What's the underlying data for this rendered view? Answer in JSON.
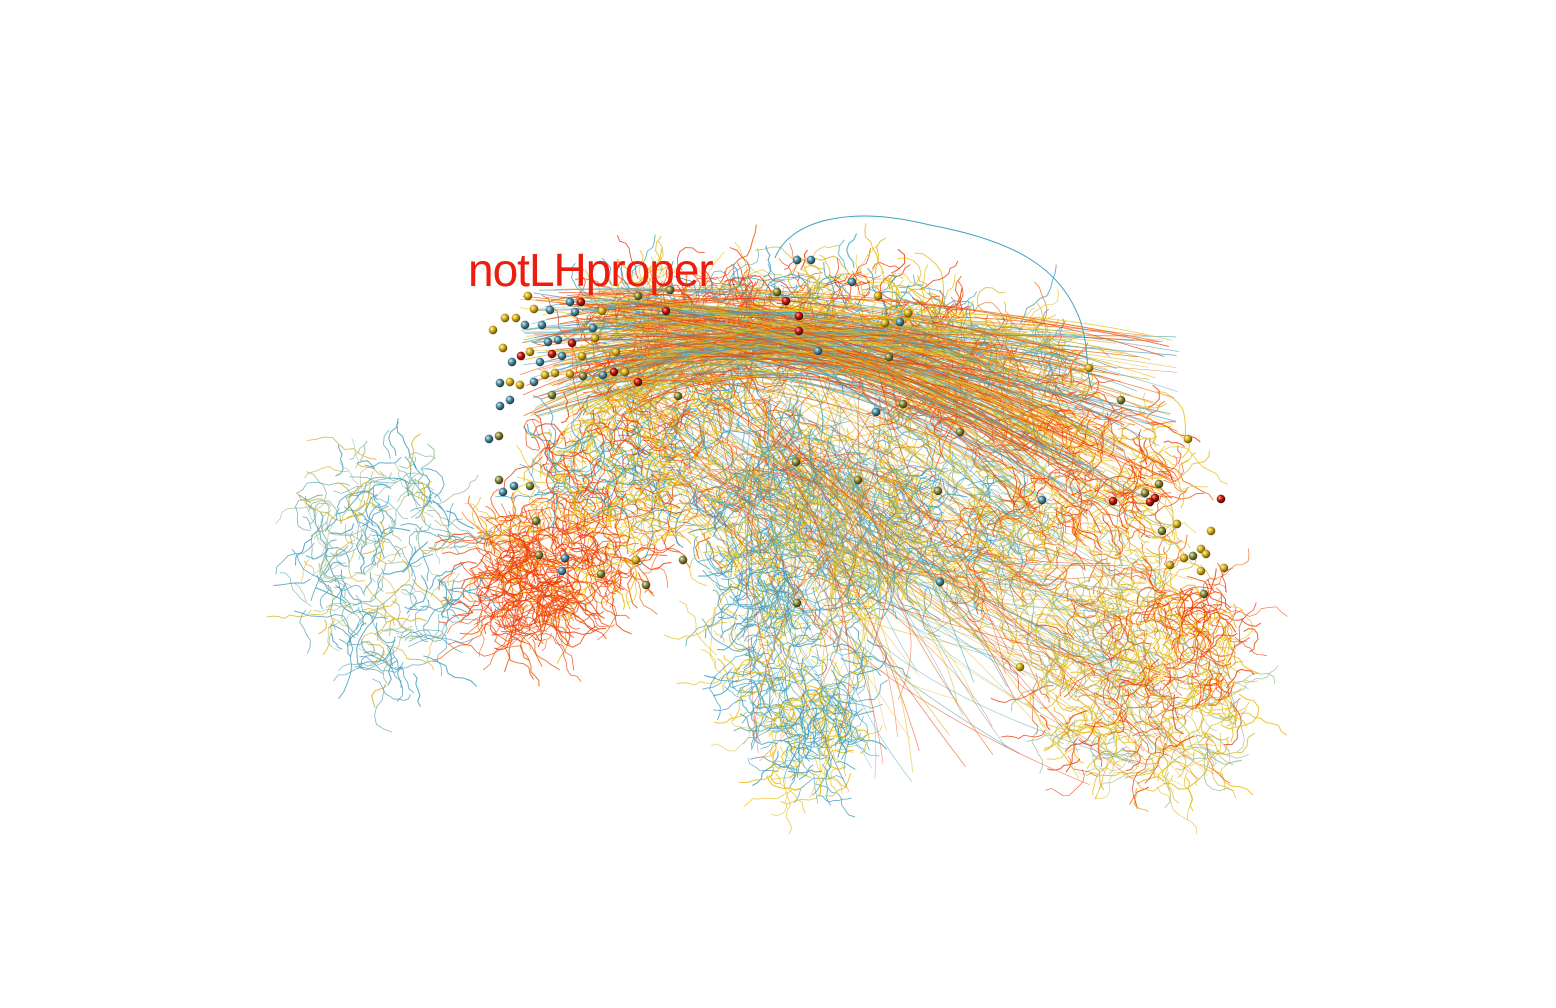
{
  "scene": {
    "annotation": {
      "text": "notLHproper",
      "color": "#ee1c0c"
    },
    "colors": {
      "background": "#ffffff",
      "series": [
        "#e8c018",
        "#d9b524",
        "#3ea0bf",
        "#5aa7b8",
        "#ef3a0a",
        "#f05a0a",
        "#9dbd9a"
      ],
      "soma_gold": "#b8930a",
      "soma_teal": "#4f8da0",
      "soma_red": "#c0180a"
    }
  }
}
